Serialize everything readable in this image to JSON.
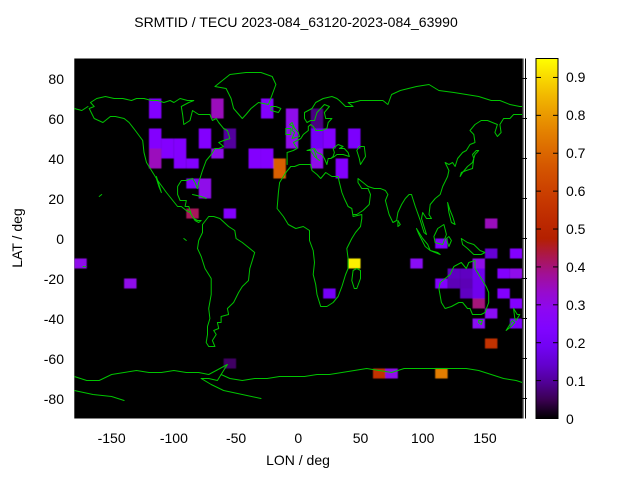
{
  "title": "SRMTID / TECU 2023-084_63120-2023-084_63990",
  "axes": {
    "xlabel": "LON / deg",
    "ylabel": "LAT / deg",
    "x_ticks": [
      -150,
      -100,
      -50,
      0,
      50,
      100,
      150
    ],
    "y_ticks": [
      80,
      60,
      40,
      20,
      0,
      -20,
      -40,
      -60,
      -80
    ],
    "xlim": [
      -180,
      180
    ],
    "ylim": [
      -90,
      90
    ]
  },
  "colorbar": {
    "tick_labels": [
      "0",
      "0.1",
      "0.2",
      "0.3",
      "0.4",
      "0.5",
      "0.6",
      "0.7",
      "0.8",
      "0.9"
    ],
    "vmin": 0,
    "vmax": 0.95,
    "palette": "gnuplot-black-purple-red-yellow"
  },
  "map": {
    "background": "#000000",
    "coastline_color": "#00c400"
  },
  "chart_data": {
    "type": "heatmap",
    "title": "SRMTID / TECU 2023-084_63120-2023-084_63990",
    "xlabel": "LON / deg",
    "ylabel": "LAT / deg",
    "xlim": [
      -180,
      180
    ],
    "ylim": [
      -90,
      90
    ],
    "grid": false,
    "legend_position": "right-colorbar",
    "value_range": [
      0,
      0.95
    ],
    "cells_format": [
      "lon_west",
      "lat_south",
      "width_deg",
      "height_deg",
      "value_tecu"
    ],
    "cells": [
      [
        -120,
        60,
        10,
        10,
        0.25
      ],
      [
        -70,
        60,
        10,
        10,
        0.35
      ],
      [
        -120,
        45,
        10,
        10,
        0.25
      ],
      [
        -120,
        35,
        10,
        10,
        0.35
      ],
      [
        -110,
        40,
        10,
        10,
        0.25
      ],
      [
        -100,
        40,
        10,
        10,
        0.25
      ],
      [
        -100,
        35,
        10,
        5,
        0.25
      ],
      [
        -90,
        35,
        10,
        5,
        0.25
      ],
      [
        -80,
        45,
        10,
        10,
        0.25
      ],
      [
        -70,
        40,
        10,
        5,
        0.3
      ],
      [
        -60,
        45,
        10,
        10,
        0.1
      ],
      [
        -90,
        25,
        10,
        5,
        0.25
      ],
      [
        -80,
        20,
        10,
        10,
        0.3
      ],
      [
        -90,
        10,
        10,
        5,
        0.42
      ],
      [
        -60,
        10,
        10,
        5,
        0.25
      ],
      [
        -30,
        60,
        10,
        10,
        0.25
      ],
      [
        -10,
        55,
        10,
        10,
        0.3
      ],
      [
        10,
        55,
        10,
        10,
        0.08
      ],
      [
        -10,
        45,
        10,
        10,
        0.3
      ],
      [
        10,
        45,
        10,
        10,
        0.2
      ],
      [
        20,
        45,
        10,
        10,
        0.25
      ],
      [
        40,
        45,
        10,
        10,
        0.22
      ],
      [
        -40,
        35,
        10,
        10,
        0.25
      ],
      [
        -30,
        35,
        10,
        10,
        0.25
      ],
      [
        -20,
        30,
        10,
        10,
        0.68
      ],
      [
        10,
        35,
        10,
        10,
        0.3
      ],
      [
        30,
        30,
        10,
        10,
        0.25
      ],
      [
        40,
        -15,
        10,
        5,
        0.93
      ],
      [
        20,
        -30,
        10,
        5,
        0.2
      ],
      [
        -180,
        -15,
        10,
        5,
        0.3
      ],
      [
        -140,
        -25,
        10,
        5,
        0.3
      ],
      [
        90,
        -15,
        10,
        5,
        0.28
      ],
      [
        110,
        -25,
        10,
        5,
        0.25
      ],
      [
        110,
        -5,
        10,
        5,
        0.25
      ],
      [
        150,
        -10,
        10,
        5,
        0.15
      ],
      [
        170,
        -10,
        10,
        5,
        0.25
      ],
      [
        140,
        -15,
        10,
        5,
        0.3
      ],
      [
        170,
        -20,
        10,
        5,
        0.3
      ],
      [
        120,
        -20,
        10,
        5,
        0.13
      ],
      [
        130,
        -20,
        10,
        5,
        0.13
      ],
      [
        140,
        -20,
        10,
        5,
        0.18
      ],
      [
        120,
        -25,
        10,
        5,
        0.12
      ],
      [
        130,
        -25,
        10,
        5,
        0.12
      ],
      [
        140,
        -25,
        10,
        5,
        0.18
      ],
      [
        130,
        -30,
        10,
        5,
        0.13
      ],
      [
        140,
        -30,
        10,
        5,
        0.18
      ],
      [
        160,
        -20,
        10,
        5,
        0.25
      ],
      [
        160,
        -30,
        10,
        5,
        0.25
      ],
      [
        140,
        -35,
        10,
        5,
        0.4
      ],
      [
        150,
        -40,
        10,
        5,
        0.28
      ],
      [
        170,
        -35,
        10,
        5,
        0.25
      ],
      [
        140,
        -45,
        10,
        5,
        0.28
      ],
      [
        170,
        -45,
        10,
        5,
        0.22
      ],
      [
        150,
        5,
        10,
        5,
        0.35
      ],
      [
        -60,
        -65,
        10,
        5,
        0.06
      ],
      [
        60,
        -70,
        10,
        5,
        0.55
      ],
      [
        70,
        -70,
        10,
        5,
        0.3
      ],
      [
        110,
        -70,
        10,
        5,
        0.75
      ],
      [
        150,
        -55,
        10,
        5,
        0.55
      ]
    ]
  }
}
